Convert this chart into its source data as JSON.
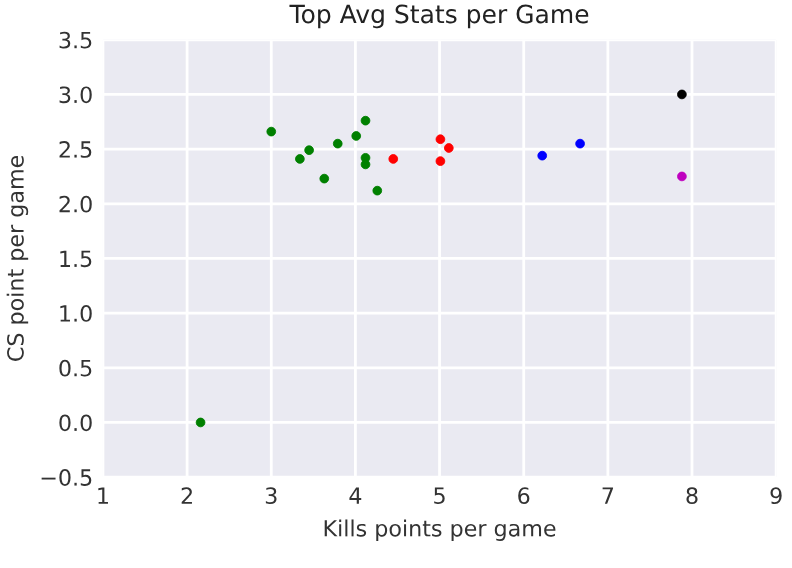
{
  "chart_data": {
    "type": "scatter",
    "title": "Top Avg Stats per Game",
    "xlabel": "Kills points per game",
    "ylabel": "CS point per game",
    "xlim": [
      1,
      9
    ],
    "xticks": [
      1,
      2,
      3,
      4,
      5,
      6,
      7,
      8,
      9
    ],
    "ylim": [
      -0.5,
      3.5
    ],
    "yticks": [
      {
        "value": -0.5,
        "label": "−0.5"
      },
      {
        "value": 0,
        "label": "0.0"
      },
      0.5,
      {
        "value": 1,
        "label": "1.0"
      },
      1.5,
      {
        "value": 2,
        "label": "2.0"
      },
      2.5,
      {
        "value": 3,
        "label": "3.0"
      },
      3.5
    ],
    "grid": true,
    "marker": "circle",
    "series": [
      {
        "color": "#008000",
        "x": [
          3.0,
          3.34,
          3.45,
          3.63,
          3.79,
          4.01,
          4.12,
          4.12,
          4.12,
          4.26,
          2.16
        ],
        "values": [
          2.66,
          2.41,
          2.49,
          2.23,
          2.55,
          2.62,
          2.76,
          2.42,
          2.36,
          2.12,
          0.0
        ]
      },
      {
        "color": "#ff0000",
        "x": [
          4.45,
          5.01,
          5.01,
          5.11
        ],
        "values": [
          2.41,
          2.59,
          2.39,
          2.51
        ]
      },
      {
        "color": "#0000ff",
        "x": [
          6.22,
          6.67
        ],
        "values": [
          2.44,
          2.55
        ]
      },
      {
        "color": "#000000",
        "x": [
          7.88
        ],
        "values": [
          3.0
        ]
      },
      {
        "color": "#bf00bf",
        "x": [
          7.88
        ],
        "values": [
          2.25
        ]
      }
    ]
  }
}
